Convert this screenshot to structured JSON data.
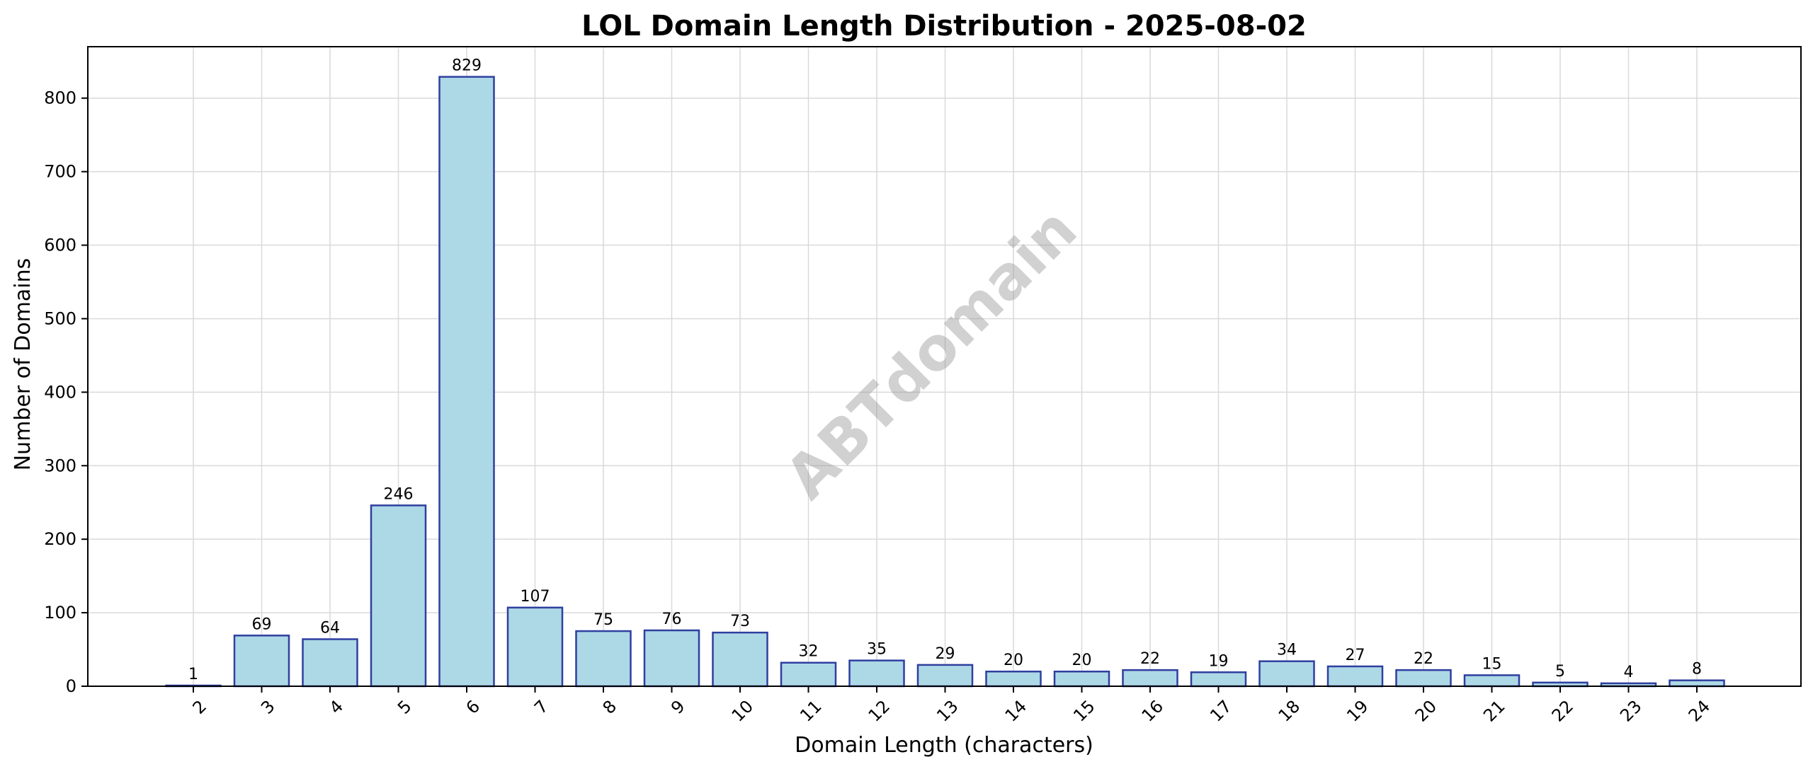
{
  "chart_data": {
    "type": "bar",
    "title": "LOL Domain Length Distribution - 2025-08-02",
    "xlabel": "Domain Length (characters)",
    "ylabel": "Number of Domains",
    "categories": [
      "2",
      "3",
      "4",
      "5",
      "6",
      "7",
      "8",
      "9",
      "10",
      "11",
      "12",
      "13",
      "14",
      "15",
      "16",
      "17",
      "18",
      "19",
      "20",
      "21",
      "22",
      "23",
      "24"
    ],
    "values": [
      1,
      69,
      64,
      246,
      829,
      107,
      75,
      76,
      73,
      32,
      35,
      29,
      20,
      20,
      22,
      19,
      34,
      27,
      22,
      15,
      5,
      4,
      8
    ],
    "ylim": [
      0,
      870
    ],
    "yticks": [
      0,
      100,
      200,
      300,
      400,
      500,
      600,
      700,
      800
    ],
    "grid": true,
    "bar_color": "#add8e6",
    "bar_edge_color": "#2f3f9f",
    "watermark": "ABTdomain"
  }
}
